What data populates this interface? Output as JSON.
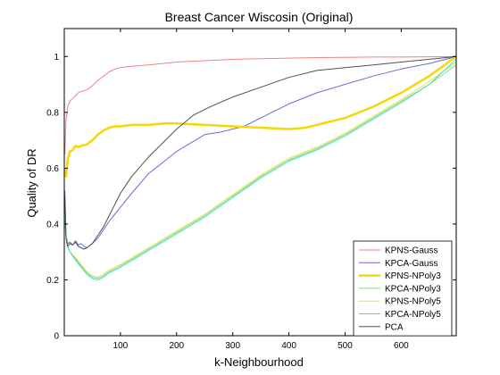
{
  "chart_data": {
    "type": "line",
    "title": "Breast Cancer Wiscosin (Original)",
    "xlabel": "k-Neighbourhood",
    "ylabel": "Quality of DR",
    "xlim": [
      0,
      698
    ],
    "ylim": [
      0,
      1.1
    ],
    "xticks": [
      100,
      200,
      300,
      400,
      500,
      600
    ],
    "yticks": [
      0,
      0.2,
      0.4,
      0.6,
      0.8,
      1
    ],
    "grid": false,
    "legend_position": "bottom-right",
    "series": [
      {
        "name": "KPNS-Gauss",
        "color": "#f08080",
        "width": 1,
        "x": [
          1,
          3,
          6,
          10,
          15,
          20,
          25,
          30,
          40,
          50,
          60,
          70,
          80,
          90,
          100,
          120,
          150,
          200,
          250,
          300,
          350,
          400,
          450,
          500,
          550,
          600,
          650,
          698
        ],
        "y": [
          0.65,
          0.77,
          0.82,
          0.84,
          0.85,
          0.86,
          0.87,
          0.875,
          0.88,
          0.895,
          0.915,
          0.93,
          0.945,
          0.955,
          0.96,
          0.965,
          0.97,
          0.98,
          0.985,
          0.99,
          0.992,
          0.994,
          0.996,
          0.997,
          0.998,
          0.998,
          0.999,
          1.0
        ]
      },
      {
        "name": "KPCA-Gauss",
        "color": "#6a6ad8",
        "width": 1,
        "x": [
          1,
          3,
          6,
          10,
          15,
          20,
          25,
          30,
          35,
          40,
          50,
          60,
          70,
          80,
          100,
          120,
          150,
          200,
          250,
          280,
          320,
          360,
          400,
          450,
          500,
          550,
          600,
          650,
          698
        ],
        "y": [
          0.52,
          0.36,
          0.33,
          0.335,
          0.325,
          0.34,
          0.325,
          0.33,
          0.32,
          0.315,
          0.33,
          0.35,
          0.38,
          0.41,
          0.46,
          0.51,
          0.58,
          0.66,
          0.72,
          0.73,
          0.75,
          0.79,
          0.83,
          0.87,
          0.9,
          0.93,
          0.955,
          0.975,
          1.0
        ]
      },
      {
        "name": "KPNS-NPoly3",
        "color": "#f5d800",
        "width": 2.5,
        "x": [
          1,
          3,
          6,
          10,
          15,
          20,
          25,
          30,
          40,
          50,
          60,
          70,
          80,
          90,
          100,
          120,
          150,
          180,
          200,
          250,
          300,
          350,
          400,
          430,
          450,
          500,
          550,
          600,
          650,
          698
        ],
        "y": [
          0.6,
          0.57,
          0.63,
          0.66,
          0.665,
          0.68,
          0.675,
          0.68,
          0.685,
          0.7,
          0.72,
          0.735,
          0.745,
          0.75,
          0.75,
          0.755,
          0.755,
          0.76,
          0.76,
          0.755,
          0.75,
          0.745,
          0.74,
          0.745,
          0.755,
          0.78,
          0.82,
          0.87,
          0.93,
          1.0
        ]
      },
      {
        "name": "KPCA-NPoly3",
        "color": "#8cd98c",
        "width": 1,
        "x": [
          1,
          5,
          10,
          20,
          30,
          40,
          50,
          60,
          70,
          80,
          100,
          150,
          200,
          250,
          300,
          350,
          400,
          450,
          500,
          550,
          600,
          650,
          698
        ],
        "y": [
          0.42,
          0.33,
          0.3,
          0.275,
          0.25,
          0.225,
          0.21,
          0.205,
          0.215,
          0.23,
          0.25,
          0.31,
          0.37,
          0.43,
          0.5,
          0.57,
          0.63,
          0.67,
          0.72,
          0.78,
          0.84,
          0.9,
          0.97
        ]
      },
      {
        "name": "KPNS-NPoly5",
        "color": "#e6e040",
        "width": 1,
        "x": [
          1,
          5,
          10,
          20,
          30,
          40,
          50,
          60,
          70,
          80,
          100,
          150,
          200,
          250,
          300,
          350,
          400,
          450,
          500,
          550,
          600,
          650,
          698
        ],
        "y": [
          0.4,
          0.32,
          0.3,
          0.28,
          0.255,
          0.23,
          0.215,
          0.21,
          0.22,
          0.235,
          0.255,
          0.315,
          0.375,
          0.435,
          0.505,
          0.575,
          0.635,
          0.675,
          0.725,
          0.785,
          0.845,
          0.91,
          0.98
        ]
      },
      {
        "name": "KPCA-NPoly5",
        "color": "#40e0d0",
        "width": 1,
        "x": [
          1,
          5,
          10,
          20,
          30,
          40,
          50,
          60,
          70,
          80,
          100,
          150,
          200,
          250,
          300,
          350,
          400,
          450,
          500,
          550,
          600,
          650,
          698
        ],
        "y": [
          0.41,
          0.325,
          0.3,
          0.27,
          0.245,
          0.22,
          0.205,
          0.2,
          0.21,
          0.225,
          0.245,
          0.305,
          0.365,
          0.425,
          0.495,
          0.565,
          0.625,
          0.665,
          0.715,
          0.775,
          0.835,
          0.9,
          0.99
        ]
      },
      {
        "name": "PCA",
        "color": "#505050",
        "width": 1,
        "x": [
          1,
          3,
          6,
          10,
          15,
          20,
          25,
          30,
          35,
          40,
          50,
          60,
          70,
          80,
          90,
          100,
          120,
          150,
          180,
          200,
          230,
          260,
          300,
          350,
          400,
          450,
          500,
          550,
          600,
          650,
          698
        ],
        "y": [
          0.5,
          0.35,
          0.32,
          0.33,
          0.325,
          0.335,
          0.32,
          0.315,
          0.31,
          0.315,
          0.33,
          0.36,
          0.39,
          0.43,
          0.47,
          0.51,
          0.57,
          0.64,
          0.7,
          0.74,
          0.79,
          0.82,
          0.855,
          0.89,
          0.925,
          0.95,
          0.96,
          0.97,
          0.98,
          0.99,
          1.0
        ]
      }
    ]
  }
}
